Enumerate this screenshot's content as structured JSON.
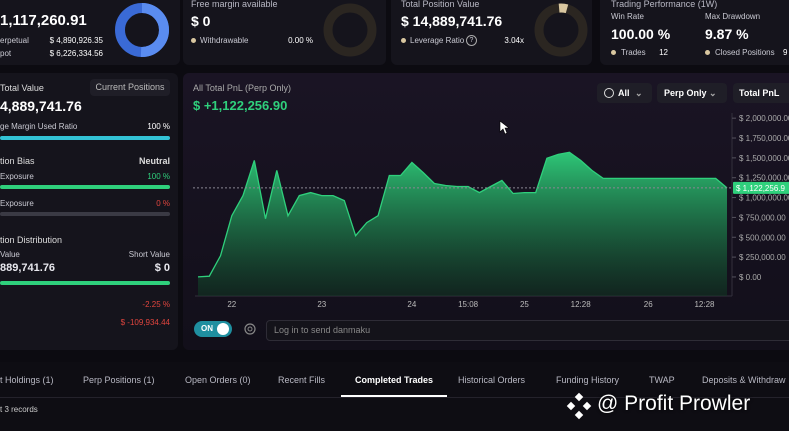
{
  "equity_card": {
    "value": "1,117,260.91",
    "rows": [
      {
        "label": "erpetual",
        "value": "$ 4,890,926.35"
      },
      {
        "label": "pot",
        "value": "$ 6,226,334.56"
      }
    ]
  },
  "margin_card": {
    "title": "Free margin available",
    "value": "$ 0",
    "row": {
      "label": "Withdrawable",
      "value": "0.00 %"
    }
  },
  "position_card": {
    "title": "Total Position Value",
    "value": "$ 14,889,741.76",
    "row": {
      "label": "Leverage Ratio",
      "help": "?",
      "value": "3.04x"
    }
  },
  "performance_card": {
    "title": "Trading Performance (1W)",
    "stats": [
      {
        "label": "Win Rate",
        "value": "100.00 %",
        "sub_label": "Trades",
        "sub_value": "12"
      },
      {
        "label": "Max Drawdown",
        "value": "9.87 %",
        "sub_label": "Closed Positions",
        "sub_value": "9"
      }
    ]
  },
  "summary": {
    "title": "Total Value",
    "button": "Current Positions",
    "value": "4,889,741.76",
    "margin": {
      "label": "ge Margin Used Ratio",
      "value": "100 %"
    },
    "bias": {
      "title": "tion Bias",
      "state": "Neutral",
      "long": {
        "label": "Exposure",
        "value": "100 %"
      },
      "short": {
        "label": "Exposure",
        "value": "0 %"
      }
    },
    "distribution": {
      "title": "tion Distribution",
      "long_label": "Value",
      "short_label": "Short Value",
      "long_value": "889,741.76",
      "short_value": "$ 0"
    },
    "pnl_pct": "-2.25 %",
    "pnl_value": "$ -109,934.44"
  },
  "pnl": {
    "filters": [
      "All",
      "Perp Only",
      "Total PnL"
    ],
    "chart_data": {
      "type": "area",
      "title": "All Total PnL (Perp Only)",
      "subtitle": "$ +1,122,256.90",
      "color": "#2fd07c",
      "categories": [
        null,
        null,
        null,
        "22",
        null,
        null,
        null,
        null,
        null,
        null,
        null,
        "23",
        null,
        null,
        null,
        null,
        null,
        null,
        null,
        "24",
        null,
        null,
        null,
        null,
        "15:08",
        null,
        null,
        null,
        null,
        "25",
        null,
        null,
        null,
        null,
        "12:28",
        null,
        null,
        null,
        null,
        null,
        "26",
        null,
        null,
        null,
        null,
        "12:28",
        null,
        null
      ],
      "values": [
        0,
        10000,
        266000,
        772000,
        1025000,
        1468000,
        734000,
        1342000,
        772000,
        1025000,
        1063000,
        1025000,
        1025000,
        962000,
        519000,
        684000,
        772000,
        1278000,
        1278000,
        1443000,
        1316000,
        1177000,
        1152000,
        1139000,
        1139000,
        1063000,
        1139000,
        1215000,
        1051000,
        1063000,
        1063000,
        1494000,
        1544000,
        1570000,
        1468000,
        1342000,
        1241000,
        1241000,
        1241000,
        1241000,
        1241000,
        1241000,
        1241000,
        1241000,
        1241000,
        1241000,
        1241000,
        1122256.9
      ],
      "current_label": "$ 1,122,256.9",
      "ylim": [
        -240000,
        2040000
      ],
      "yticks": [
        {
          "value": 0,
          "label": "$ 0.00"
        },
        {
          "value": 250000,
          "label": "$ 250,000.00"
        },
        {
          "value": 500000,
          "label": "$ 500,000.00"
        },
        {
          "value": 750000,
          "label": "$ 750,000.00"
        },
        {
          "value": 1000000,
          "label": "$ 1,000,000.00"
        },
        {
          "value": 1250000,
          "label": "$ 1,250,000.00"
        },
        {
          "value": 1500000,
          "label": "$ 1,500,000.00"
        },
        {
          "value": 1750000,
          "label": "$ 1,750,000.00"
        },
        {
          "value": 2000000,
          "label": "$ 2,000,000.00"
        }
      ]
    }
  },
  "chat": {
    "toggle": "ON",
    "placeholder": "Log in to send danmaku"
  },
  "tabs": {
    "items": [
      "t Holdings (1)",
      "Perp Positions (1)",
      "Open Orders (0)",
      "Recent Fills",
      "Completed Trades",
      "Historical Orders",
      "Funding History",
      "TWAP",
      "Deposits & Withdraw"
    ],
    "active": 4
  },
  "records": "t 3 records",
  "watermark": "@ Profit Prowler"
}
